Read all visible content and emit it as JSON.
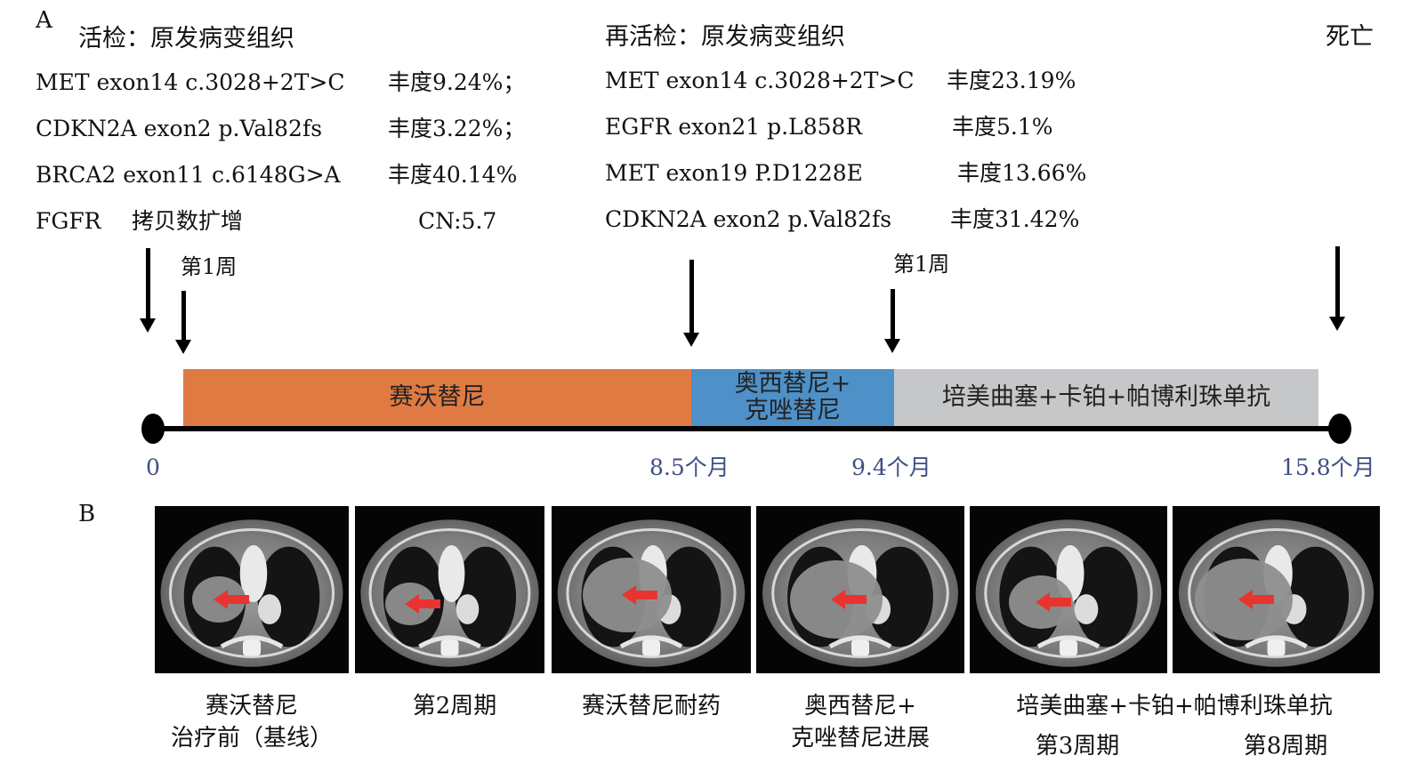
{
  "panel_a_label": "A",
  "panel_b_label": "B",
  "biopsy1": {
    "header": "活检：原发病变组织",
    "rows": [
      {
        "gene": "MET exon14 c.3028+2T>C",
        "value": "丰度9.24%；"
      },
      {
        "gene": "CDKN2A exon2 p.Val82fs",
        "value": "丰度3.22%；"
      },
      {
        "gene": "BRCA2 exon11 c.6148G>A",
        "value": "丰度40.14%"
      },
      {
        "gene": "FGFR",
        "desc": "拷贝数扩增",
        "value": "CN:5.7"
      }
    ]
  },
  "biopsy2": {
    "header": "再活检：原发病变组织",
    "rows": [
      {
        "gene": "MET exon14 c.3028+2T>C",
        "value": "丰度23.19%"
      },
      {
        "gene": "EGFR exon21 p.L858R",
        "value": "丰度5.1%"
      },
      {
        "gene": "MET exon19 P.D1228E",
        "value": "丰度13.66%"
      },
      {
        "gene": "CDKN2A exon2 p.Val82fs",
        "value": "丰度31.42%"
      }
    ]
  },
  "death_label": "死亡",
  "week1_label": "第1周",
  "timeline": {
    "segments": [
      {
        "label": "赛沃替尼",
        "color": "#e07a43",
        "start": 0,
        "end": 8.5
      },
      {
        "label_line1": "奥西替尼+",
        "label_line2": "克唑替尼",
        "color": "#4e90c8",
        "start": 8.5,
        "end": 9.4
      },
      {
        "label": "培美曲塞+卡铂+帕博利珠单抗",
        "color": "#c6c7c9",
        "start": 9.4,
        "end": 15.8
      }
    ],
    "ticks": [
      "0",
      "8.5个月",
      "9.4个月",
      "15.8个月"
    ]
  },
  "scans": {
    "captions": [
      {
        "line1": "赛沃替尼",
        "line2": "治疗前（基线）"
      },
      {
        "line1": "第2周期"
      },
      {
        "line1": "赛沃替尼耐药"
      },
      {
        "line1": "奥西替尼+",
        "line2": "克唑替尼进展"
      },
      {
        "line1": "培美曲塞+卡铂+帕博利珠单抗"
      },
      {
        "line1": "第3周期"
      },
      {
        "line1": "第8周期"
      }
    ],
    "arrow_color": "#e8342f"
  }
}
